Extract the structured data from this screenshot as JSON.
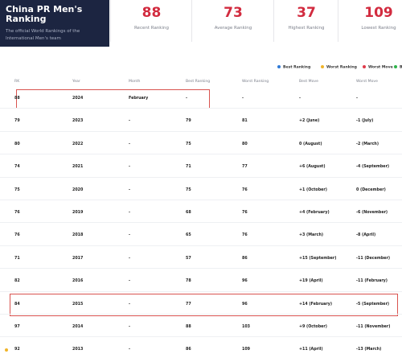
{
  "header": {
    "title": "China PR Men's Ranking",
    "subtitle": "The official World Rankings of the International Men's team"
  },
  "stats": [
    {
      "value": 88,
      "label": "Recent Ranking"
    },
    {
      "value": 73,
      "label": "Average Ranking"
    },
    {
      "value": 37,
      "label": "Highest Ranking"
    },
    {
      "value": 109,
      "label": "Lowest Ranking"
    }
  ],
  "legend": [
    {
      "label": "Best Ranking",
      "color": "#2f7ad6"
    },
    {
      "label": "Worst Ranking",
      "color": "#f0b429"
    },
    {
      "label": "Worst Move",
      "color": "#e03b4b"
    },
    {
      "label": "Best Move",
      "color": "#2eb34a"
    }
  ],
  "table": {
    "columns": [
      "RK",
      "Year",
      "Month",
      "Best Ranking",
      "Worst Ranking",
      "Best Move",
      "Worst Move"
    ],
    "rows": [
      [
        88,
        2024,
        "February",
        "-",
        "-",
        "-",
        "-"
      ],
      [
        79,
        2023,
        "-",
        79,
        81,
        "+2 (June)",
        "-1 (July)"
      ],
      [
        80,
        2022,
        "-",
        75,
        80,
        "0 (August)",
        "-2 (March)"
      ],
      [
        74,
        2021,
        "-",
        71,
        77,
        "+6 (August)",
        "-4 (September)"
      ],
      [
        75,
        2020,
        "-",
        75,
        76,
        "+1 (October)",
        "0 (December)"
      ],
      [
        76,
        2019,
        "-",
        68,
        76,
        "+4 (February)",
        "-6 (November)"
      ],
      [
        76,
        2018,
        "-",
        65,
        76,
        "+3 (March)",
        "-8 (April)"
      ],
      [
        71,
        2017,
        "-",
        57,
        86,
        "+15 (September)",
        "-11 (December)"
      ],
      [
        82,
        2016,
        "-",
        78,
        96,
        "+19 (April)",
        "-11 (February)"
      ],
      [
        84,
        2015,
        "-",
        77,
        96,
        "+14 (February)",
        "-5 (September)"
      ],
      [
        97,
        2014,
        "-",
        88,
        103,
        "+9 (October)",
        "-11 (November)"
      ],
      [
        92,
        2013,
        "-",
        86,
        109,
        "+11 (April)",
        "-13 (March)"
      ]
    ]
  }
}
